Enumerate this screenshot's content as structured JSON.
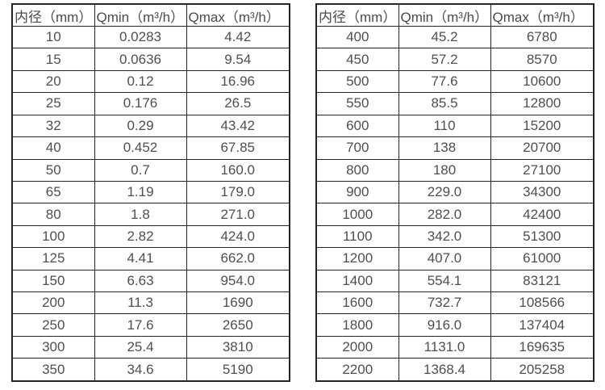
{
  "columns": [
    "内径（mm）",
    "Qmin（m³/h）",
    "Qmax（m³/h）"
  ],
  "left_table": {
    "rows": [
      [
        "10",
        "0.0283",
        "4.42"
      ],
      [
        "15",
        "0.0636",
        "9.54"
      ],
      [
        "20",
        "0.12",
        "16.96"
      ],
      [
        "25",
        "0.176",
        "26.5"
      ],
      [
        "32",
        "0.29",
        "43.42"
      ],
      [
        "40",
        "0.452",
        "67.85"
      ],
      [
        "50",
        "0.7",
        "160.0"
      ],
      [
        "65",
        "1.19",
        "179.0"
      ],
      [
        "80",
        "1.8",
        "271.0"
      ],
      [
        "100",
        "2.82",
        "424.0"
      ],
      [
        "125",
        "4.41",
        "662.0"
      ],
      [
        "150",
        "6.63",
        "954.0"
      ],
      [
        "200",
        "11.3",
        "1690"
      ],
      [
        "250",
        "17.6",
        "2650"
      ],
      [
        "300",
        "25.4",
        "3810"
      ],
      [
        "350",
        "34.6",
        "5190"
      ]
    ]
  },
  "right_table": {
    "rows": [
      [
        "400",
        "45.2",
        "6780"
      ],
      [
        "450",
        "57.2",
        "8570"
      ],
      [
        "500",
        "77.6",
        "10600"
      ],
      [
        "550",
        "85.5",
        "12800"
      ],
      [
        "600",
        "110",
        "15200"
      ],
      [
        "700",
        "138",
        "20700"
      ],
      [
        "800",
        "180",
        "27100"
      ],
      [
        "900",
        "229.0",
        "34300"
      ],
      [
        "1000",
        "282.0",
        "42400"
      ],
      [
        "1100",
        "342.0",
        "51300"
      ],
      [
        "1200",
        "407.0",
        "61000"
      ],
      [
        "1400",
        "554.1",
        "83121"
      ],
      [
        "1600",
        "732.7",
        "108566"
      ],
      [
        "1800",
        "916.0",
        "137404"
      ],
      [
        "2000",
        "1131.0",
        "169635"
      ],
      [
        "2200",
        "1368.4",
        "205258"
      ]
    ]
  },
  "colors": {
    "text": "#4f4f4f",
    "border": "#262626",
    "background": "#ffffff"
  }
}
